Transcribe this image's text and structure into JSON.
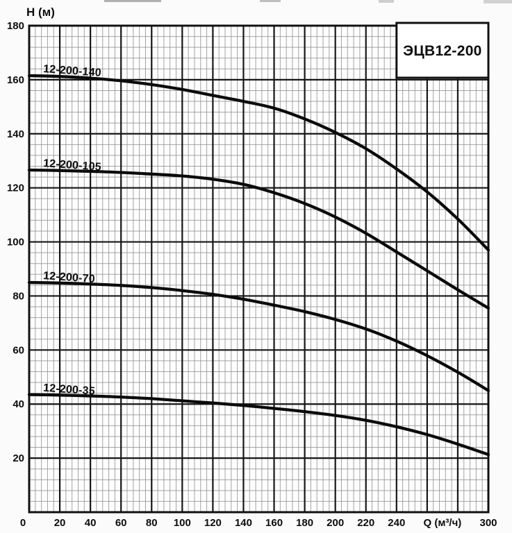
{
  "page": {
    "background": "#fbfbfb"
  },
  "chart_data": {
    "type": "line",
    "title": "ЭЦВ12-200",
    "ylabel": "H (м)",
    "xlabel": "Q (м³/ч)",
    "grid": "on",
    "legend_position": "inline-labels",
    "x_axis": {
      "min": 0,
      "max": 300,
      "major_step": 20,
      "minor_step": 4,
      "tick_labels": [
        0,
        20,
        40,
        60,
        80,
        100,
        120,
        140,
        160,
        180,
        200,
        220,
        240
      ],
      "end_tick_label": 300,
      "unit_label_position": 270
    },
    "y_axis": {
      "min": 0,
      "max": 180,
      "major_step": 20,
      "minor_step": 4,
      "tick_labels": [
        180,
        160,
        140,
        120,
        100,
        80,
        60,
        40,
        20
      ]
    },
    "colors": {
      "curve": "#0b0b0b",
      "grid_major": "#161616",
      "grid_minor": "#8f8f8f",
      "frame": "#111111",
      "plot_fill": "#fdfdfd",
      "title_box_fill": "#ffffff"
    },
    "series": [
      {
        "name": "12-200-140",
        "points": [
          [
            0,
            161.5
          ],
          [
            20,
            161.2
          ],
          [
            40,
            160.6
          ],
          [
            60,
            159.6
          ],
          [
            80,
            158.2
          ],
          [
            100,
            156.4
          ],
          [
            120,
            154.2
          ],
          [
            140,
            152.0
          ],
          [
            160,
            149.5
          ],
          [
            180,
            145.5
          ],
          [
            200,
            140.5
          ],
          [
            220,
            134.5
          ],
          [
            240,
            127.0
          ],
          [
            260,
            118.5
          ],
          [
            280,
            108.5
          ],
          [
            300,
            97.0
          ]
        ]
      },
      {
        "name": "12-200-105",
        "points": [
          [
            0,
            126.6
          ],
          [
            20,
            126.4
          ],
          [
            40,
            126.1
          ],
          [
            60,
            125.7
          ],
          [
            80,
            125.1
          ],
          [
            100,
            124.4
          ],
          [
            120,
            123.2
          ],
          [
            140,
            121.3
          ],
          [
            160,
            118.2
          ],
          [
            180,
            114.2
          ],
          [
            200,
            109.2
          ],
          [
            220,
            103.2
          ],
          [
            240,
            96.3
          ],
          [
            260,
            89.3
          ],
          [
            280,
            82.3
          ],
          [
            300,
            75.5
          ]
        ]
      },
      {
        "name": "12-200-70",
        "points": [
          [
            0,
            85.0
          ],
          [
            20,
            84.8
          ],
          [
            40,
            84.4
          ],
          [
            60,
            83.9
          ],
          [
            80,
            83.1
          ],
          [
            100,
            82.0
          ],
          [
            120,
            80.6
          ],
          [
            140,
            78.8
          ],
          [
            160,
            76.6
          ],
          [
            180,
            74.2
          ],
          [
            200,
            71.3
          ],
          [
            220,
            67.8
          ],
          [
            240,
            63.3
          ],
          [
            260,
            57.9
          ],
          [
            280,
            51.8
          ],
          [
            300,
            45.0
          ]
        ]
      },
      {
        "name": "12-200-35",
        "points": [
          [
            0,
            43.5
          ],
          [
            20,
            43.3
          ],
          [
            40,
            43.0
          ],
          [
            60,
            42.6
          ],
          [
            80,
            42.0
          ],
          [
            100,
            41.2
          ],
          [
            120,
            40.4
          ],
          [
            140,
            39.5
          ],
          [
            160,
            38.4
          ],
          [
            180,
            37.2
          ],
          [
            200,
            35.8
          ],
          [
            220,
            34.0
          ],
          [
            240,
            31.6
          ],
          [
            260,
            28.7
          ],
          [
            280,
            25.2
          ],
          [
            300,
            21.3
          ]
        ]
      }
    ]
  }
}
